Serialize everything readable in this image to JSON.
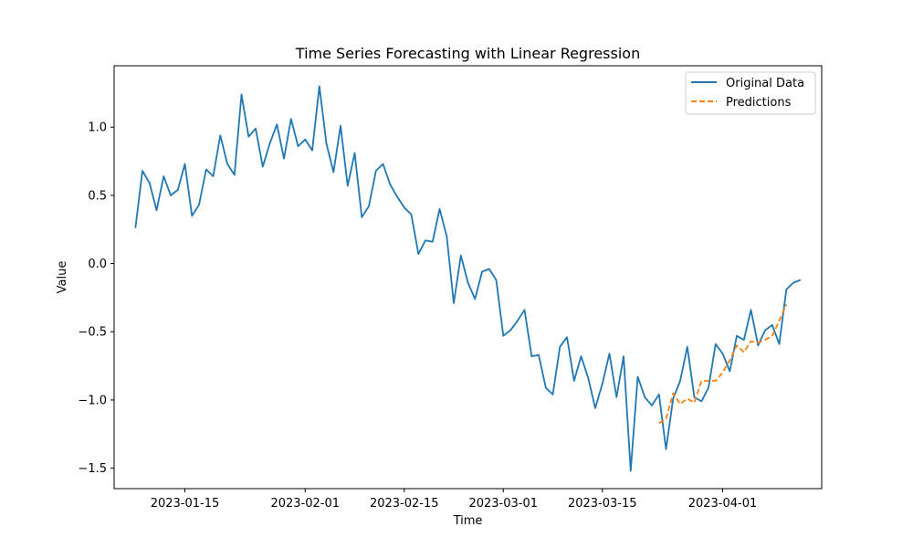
{
  "chart_data": {
    "type": "line",
    "title": "Time Series Forecasting with Linear Regression",
    "xlabel": "Time",
    "ylabel": "Value",
    "xlim": [
      "2023-01-05",
      "2023-04-15"
    ],
    "ylim": [
      -1.65,
      1.45
    ],
    "x_ticks": [
      "2023-01-15",
      "2023-02-01",
      "2023-02-15",
      "2023-03-01",
      "2023-03-15",
      "2023-04-01"
    ],
    "y_ticks": [
      -1.5,
      -1.0,
      -0.5,
      0.0,
      0.5,
      1.0
    ],
    "grid": false,
    "legend_position": "upper right",
    "series": [
      {
        "name": "Original Data",
        "color": "#1f77b4",
        "style": "solid",
        "start_date": "2023-01-08",
        "values": [
          0.26,
          0.68,
          0.59,
          0.39,
          0.64,
          0.5,
          0.54,
          0.73,
          0.35,
          0.43,
          0.69,
          0.64,
          0.94,
          0.73,
          0.65,
          1.24,
          0.93,
          0.99,
          0.71,
          0.88,
          1.02,
          0.77,
          1.06,
          0.86,
          0.91,
          0.83,
          1.3,
          0.88,
          0.67,
          1.01,
          0.57,
          0.81,
          0.34,
          0.42,
          0.68,
          0.73,
          0.58,
          0.49,
          0.41,
          0.36,
          0.07,
          0.17,
          0.16,
          0.4,
          0.2,
          -0.29,
          0.06,
          -0.14,
          -0.26,
          -0.06,
          -0.04,
          -0.12,
          -0.53,
          -0.49,
          -0.42,
          -0.34,
          -0.68,
          -0.67,
          -0.91,
          -0.96,
          -0.61,
          -0.54,
          -0.86,
          -0.68,
          -0.84,
          -1.06,
          -0.88,
          -0.66,
          -0.98,
          -0.68,
          -1.52,
          -0.83,
          -0.98,
          -1.04,
          -0.96,
          -1.36,
          -0.99,
          -0.86,
          -0.61,
          -0.98,
          -1.01,
          -0.91,
          -0.59,
          -0.66,
          -0.79,
          -0.53,
          -0.56,
          -0.34,
          -0.6,
          -0.49,
          -0.45,
          -0.59,
          -0.19,
          -0.14,
          -0.12
        ]
      },
      {
        "name": "Predictions",
        "color": "#ff7f0e",
        "style": "dashed",
        "start_date": "2023-03-23",
        "values": [
          -1.17,
          -1.14,
          -0.95,
          -1.03,
          -0.99,
          -1.02,
          -0.86,
          -0.86,
          -0.86,
          -0.8,
          -0.71,
          -0.6,
          -0.65,
          -0.57,
          -0.58,
          -0.56,
          -0.53,
          -0.42,
          -0.3
        ]
      }
    ]
  }
}
